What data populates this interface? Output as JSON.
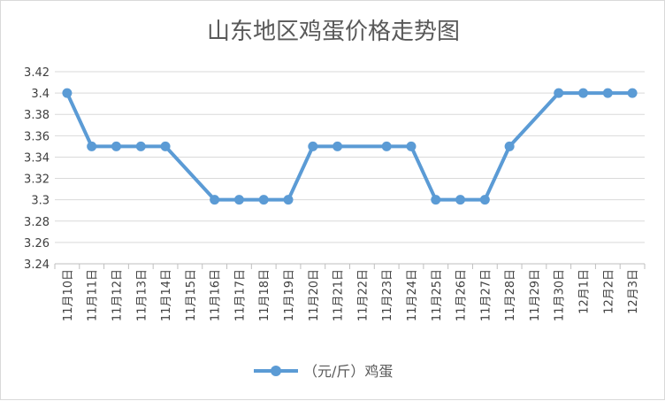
{
  "chart_data": {
    "type": "line",
    "title": "山东地区鸡蛋价格走势图",
    "xlabel": "",
    "ylabel": "",
    "ylim": [
      3.24,
      3.42
    ],
    "ytick_step": 0.02,
    "grid": true,
    "legend_position": "bottom",
    "categories": [
      "11月10日",
      "11月11日",
      "11月12日",
      "11月13日",
      "11月14日",
      "11月15日",
      "11月16日",
      "11月17日",
      "11月18日",
      "11月19日",
      "11月20日",
      "11月21日",
      "11月22日",
      "11月23日",
      "11月24日",
      "11月25日",
      "11月26日",
      "11月27日",
      "11月28日",
      "11月29日",
      "11月30日",
      "12月1日",
      "12月2日",
      "12月3日"
    ],
    "series": [
      {
        "name": "（元/斤）鸡蛋",
        "color": "#5b9bd5",
        "values": [
          3.4,
          3.35,
          3.35,
          3.35,
          3.35,
          null,
          3.3,
          3.3,
          3.3,
          3.3,
          3.35,
          3.35,
          null,
          3.35,
          3.35,
          3.3,
          3.3,
          3.3,
          3.35,
          null,
          3.4,
          3.4,
          3.4,
          3.4
        ]
      }
    ]
  }
}
